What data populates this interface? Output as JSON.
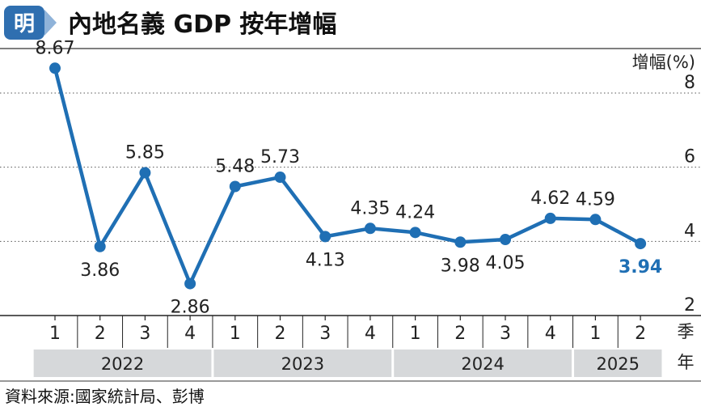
{
  "header": {
    "logo_text": "明",
    "title": "內地名義 GDP 按年增幅"
  },
  "chart_data": {
    "type": "line",
    "ylabel": "增幅(%)",
    "ylim": [
      2,
      9.2
    ],
    "yticks": [
      2,
      4,
      6,
      8
    ],
    "grid": "horizontal-dotted",
    "x_axis_quarter_label": "季",
    "x_axis_year_label": "年",
    "categories": [
      "1",
      "2",
      "3",
      "4",
      "1",
      "2",
      "3",
      "4",
      "1",
      "2",
      "3",
      "4",
      "1",
      "2"
    ],
    "years": [
      {
        "label": "2022",
        "quarters": 4
      },
      {
        "label": "2023",
        "quarters": 4
      },
      {
        "label": "2024",
        "quarters": 4
      },
      {
        "label": "2025",
        "quarters": 2
      }
    ],
    "series": [
      {
        "values": [
          8.67,
          3.86,
          5.85,
          2.86,
          5.48,
          5.73,
          4.13,
          4.35,
          4.24,
          3.98,
          4.05,
          4.62,
          4.59,
          3.94
        ],
        "labels": [
          "8.67",
          "3.86",
          "5.85",
          "2.86",
          "5.48",
          "5.73",
          "4.13",
          "4.35",
          "4.24",
          "3.98",
          "4.05",
          "4.62",
          "4.59",
          "3.94"
        ],
        "color": "#1f6fb4",
        "highlight_last": true
      }
    ]
  },
  "footer": {
    "source": "資料來源:國家統計局、彭博"
  },
  "colors": {
    "line": "#1f6fb4",
    "year_band": "#d6d8da",
    "logo": "#2f6fb0"
  }
}
